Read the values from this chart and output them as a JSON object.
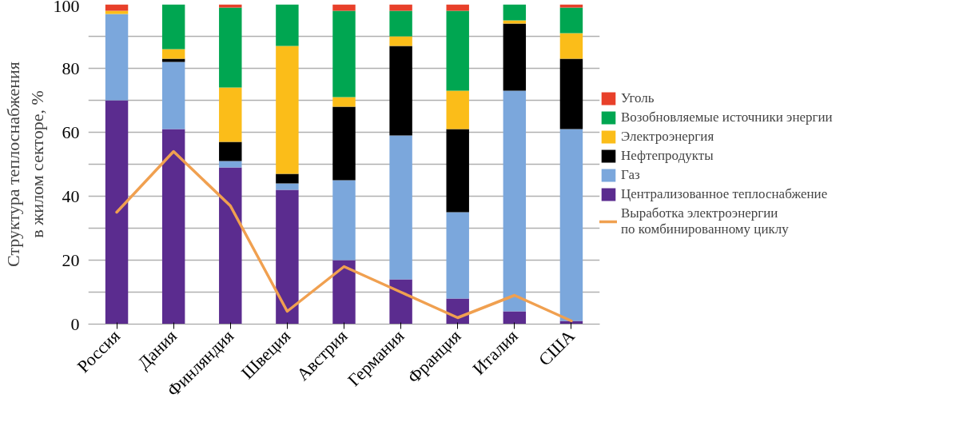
{
  "chart_data": {
    "type": "bar",
    "stacked": true,
    "ylabel": "Структура теплоснабжения\nв жилом секторе, %",
    "categories": [
      "Россия",
      "Дания",
      "Финляндия",
      "Швеция",
      "Австрия",
      "Германия",
      "Франция",
      "Италия",
      "США"
    ],
    "series": [
      {
        "name": "Централизованное теплоснабжение",
        "color": "#5b2c8f",
        "values": [
          70,
          61,
          49,
          42,
          20,
          14,
          8,
          4,
          1
        ]
      },
      {
        "name": "Газ",
        "color": "#7ba7dc",
        "values": [
          27,
          21,
          2,
          2,
          25,
          45,
          27,
          69,
          60
        ]
      },
      {
        "name": "Нефтепродукты",
        "color": "#000000",
        "values": [
          0,
          1,
          6,
          3,
          23,
          28,
          26,
          21,
          22
        ]
      },
      {
        "name": "Электроэнергия",
        "color": "#fbbd19",
        "values": [
          1,
          3,
          17,
          40,
          3,
          3,
          12,
          1,
          8
        ]
      },
      {
        "name": "Возобновляемые источники энергии",
        "color": "#00a651",
        "values": [
          0,
          14,
          25,
          13,
          27,
          8,
          25,
          5,
          8
        ]
      },
      {
        "name": "Уголь",
        "color": "#e8402a",
        "values": [
          2,
          0,
          1,
          0,
          2,
          2,
          2,
          0,
          1
        ]
      },
      {
        "name": "Выработка электроэнергии\nпо комбинированному циклу",
        "type": "line",
        "color": "#f0a050",
        "values": [
          35,
          54,
          37,
          4,
          18,
          10,
          2,
          9,
          1
        ]
      }
    ],
    "ylim": [
      0,
      100
    ],
    "yticks": [
      0,
      {
        "value": 10,
        "label": null
      },
      20,
      {
        "value": 30,
        "label": null
      },
      40,
      {
        "value": 50,
        "label": null
      },
      60,
      {
        "value": 70,
        "label": null
      },
      80,
      {
        "value": 90,
        "label": null
      },
      100
    ],
    "grid": "y",
    "legend": "right",
    "line_style": "solid",
    "marker": "none"
  }
}
